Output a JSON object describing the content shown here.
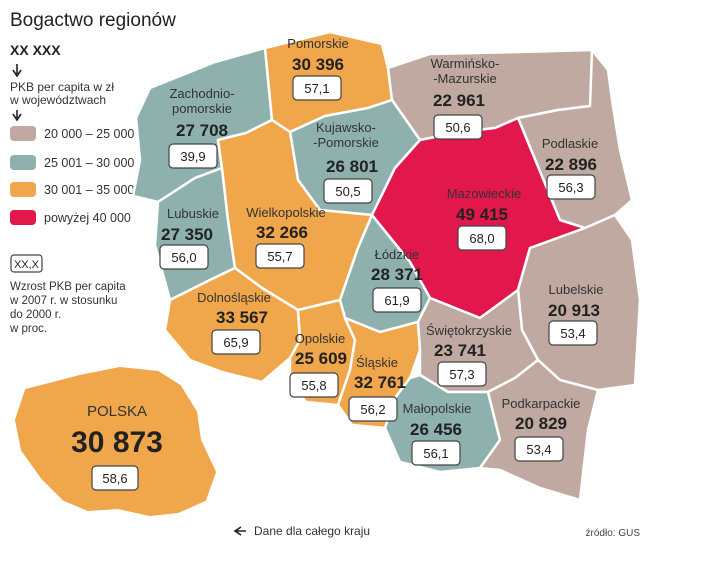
{
  "title": "Bogactwo regionów",
  "legend": {
    "value_sample": "XX XXX",
    "value_desc_line1": "PKB per capita w zł",
    "value_desc_line2": "w województwach",
    "items": [
      {
        "label": "20 000 – 25 000",
        "color": "#bfa9a0"
      },
      {
        "label": "25 001 – 30 000",
        "color": "#8fb1ae"
      },
      {
        "label": "30 001 – 35 000",
        "color": "#f0a64a"
      },
      {
        "label": "powyżej 40 000",
        "color": "#e2184c"
      }
    ],
    "growth_sample": "XX,X",
    "growth_desc_line1": "Wzrost PKB per capita",
    "growth_desc_line2": "w 2007 r. w stosunku",
    "growth_desc_line3": "do 2000 r.",
    "growth_desc_line4": "w proc."
  },
  "country_note": "Dane dla całego kraju",
  "source": "źródło: GUS",
  "poland": {
    "name": "POLSKA",
    "value": "30 873",
    "growth": "58,6"
  },
  "regions": {
    "zachodniopomorskie": {
      "name1": "Zachodnio-",
      "name2": "pomorskie",
      "value": "27 708",
      "growth": "39,9"
    },
    "pomorskie": {
      "name": "Pomorskie",
      "value": "30 396",
      "growth": "57,1"
    },
    "warminsko": {
      "name1": "Warmińsko-",
      "name2": "-Mazurskie",
      "value": "22 961",
      "growth": "50,6"
    },
    "podlaskie": {
      "name": "Podlaskie",
      "value": "22 896",
      "growth": "56,3"
    },
    "kujawsko": {
      "name1": "Kujawsko-",
      "name2": "-Pomorskie",
      "value": "26 801",
      "growth": "50,5"
    },
    "lubuskie": {
      "name": "Lubuskie",
      "value": "27 350",
      "growth": "56,0"
    },
    "wielkopolskie": {
      "name": "Wielkopolskie",
      "value": "32 266",
      "growth": "55,7"
    },
    "mazowieckie": {
      "name": "Mazowieckie",
      "value": "49 415",
      "growth": "68,0"
    },
    "lodzkie": {
      "name": "Łódzkie",
      "value": "28 371",
      "growth": "61,9"
    },
    "dolnoslaskie": {
      "name": "Dolnośląskie",
      "value": "33 567",
      "growth": "65,9"
    },
    "lubelskie": {
      "name": "Lubelskie",
      "value": "20 913",
      "growth": "53,4"
    },
    "opolskie": {
      "name": "Opolskie",
      "value": "25 609",
      "growth": "55,8"
    },
    "slaskie": {
      "name": "Śląskie",
      "value": "32 761",
      "growth": "56,2"
    },
    "swietokrzyskie": {
      "name": "Świętokrzyskie",
      "value": "23 741",
      "growth": "57,3"
    },
    "malopolskie": {
      "name": "Małopolskie",
      "value": "26 456",
      "growth": "56,1"
    },
    "podkarpackie": {
      "name": "Podkarpackie",
      "value": "20 829",
      "growth": "53,4"
    }
  }
}
